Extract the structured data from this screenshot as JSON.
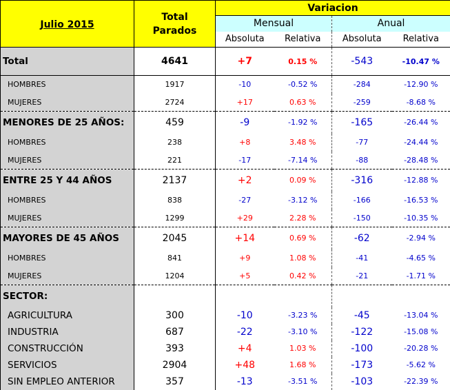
{
  "header": {
    "period": "Julio 2015",
    "total_label_1": "Total",
    "total_label_2": "Parados",
    "variacion": "Variacion",
    "mensual": "Mensual",
    "anual": "Anual",
    "absoluta_m": "Absoluta",
    "relativa_m": "Relativa",
    "absoluta_a": "Absoluta",
    "relativa_a": "Relativa"
  },
  "rows": [
    {
      "label": "Total",
      "total": "4641",
      "m_abs": "+7",
      "m_rel": "0.15 %",
      "a_abs": "-543",
      "a_rel": "-10.47 %"
    },
    {
      "label": "HOMBRES",
      "total": "1917",
      "m_abs": "-10",
      "m_rel": "-0.52 %",
      "a_abs": "-284",
      "a_rel": "-12.90 %"
    },
    {
      "label": "MUJERES",
      "total": "2724",
      "m_abs": "+17",
      "m_rel": "0.63 %",
      "a_abs": "-259",
      "a_rel": "-8.68 %"
    },
    {
      "label": "MENORES DE 25 AÑOS:",
      "total": "459",
      "m_abs": "-9",
      "m_rel": "-1.92 %",
      "a_abs": "-165",
      "a_rel": "-26.44 %"
    },
    {
      "label": "HOMBRES",
      "total": "238",
      "m_abs": "+8",
      "m_rel": "3.48 %",
      "a_abs": "-77",
      "a_rel": "-24.44 %"
    },
    {
      "label": "MUJERES",
      "total": "221",
      "m_abs": "-17",
      "m_rel": "-7.14 %",
      "a_abs": "-88",
      "a_rel": "-28.48 %"
    },
    {
      "label": "ENTRE 25 Y 44 AÑOS",
      "total": "2137",
      "m_abs": "+2",
      "m_rel": "0.09 %",
      "a_abs": "-316",
      "a_rel": "-12.88 %"
    },
    {
      "label": "HOMBRES",
      "total": "838",
      "m_abs": "-27",
      "m_rel": "-3.12 %",
      "a_abs": "-166",
      "a_rel": "-16.53 %"
    },
    {
      "label": "MUJERES",
      "total": "1299",
      "m_abs": "+29",
      "m_rel": "2.28 %",
      "a_abs": "-150",
      "a_rel": "-10.35 %"
    },
    {
      "label": "MAYORES DE 45 AÑOS",
      "total": "2045",
      "m_abs": "+14",
      "m_rel": "0.69 %",
      "a_abs": "-62",
      "a_rel": "-2.94 %"
    },
    {
      "label": "HOMBRES",
      "total": "841",
      "m_abs": "+9",
      "m_rel": "1.08 %",
      "a_abs": "-41",
      "a_rel": "-4.65 %"
    },
    {
      "label": "MUJERES",
      "total": "1204",
      "m_abs": "+5",
      "m_rel": "0.42 %",
      "a_abs": "-21",
      "a_rel": "-1.71 %"
    },
    {
      "label": "SECTOR:"
    },
    {
      "label": "AGRICULTURA",
      "total": "300",
      "m_abs": "-10",
      "m_rel": "-3.23 %",
      "a_abs": "-45",
      "a_rel": "-13.04 %"
    },
    {
      "label": "INDUSTRIA",
      "total": "687",
      "m_abs": "-22",
      "m_rel": "-3.10 %",
      "a_abs": "-122",
      "a_rel": "-15.08 %"
    },
    {
      "label": "CONSTRUCCIÓN",
      "total": "393",
      "m_abs": "+4",
      "m_rel": "1.03 %",
      "a_abs": "-100",
      "a_rel": "-20.28 %"
    },
    {
      "label": "SERVICIOS",
      "total": "2904",
      "m_abs": "+48",
      "m_rel": "1.68 %",
      "a_abs": "-173",
      "a_rel": "-5.62 %"
    },
    {
      "label": "SIN EMPLEO ANTERIOR",
      "total": "357",
      "m_abs": "-13",
      "m_rel": "-3.51 %",
      "a_abs": "-103",
      "a_rel": "-22.39 %"
    }
  ],
  "colors": {
    "positive": "#ff0000",
    "negative": "#0000cc",
    "header": "#ffff00",
    "subheader": "#ccffff",
    "label_bg": "#d3d3d3"
  }
}
